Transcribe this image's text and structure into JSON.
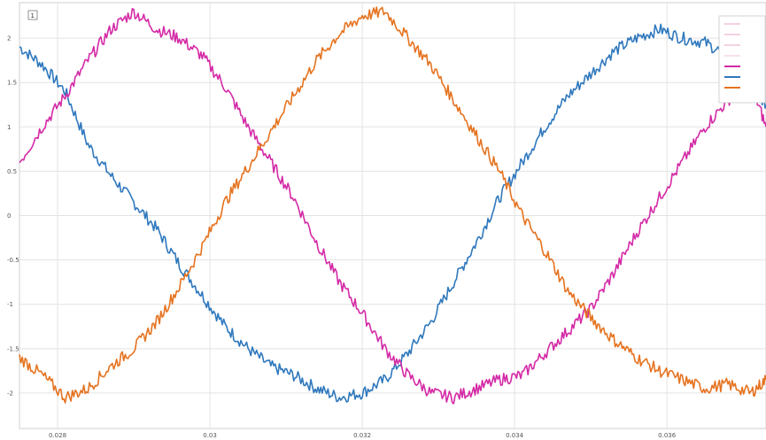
{
  "chart_data": {
    "type": "line",
    "title": "",
    "xlabel": "",
    "ylabel": "",
    "panel_badge": "1",
    "xlim": [
      0.0275,
      0.0373
    ],
    "ylim": [
      -2.4,
      2.4
    ],
    "grid": true,
    "legend_placement": "top-right",
    "x_ticks": [
      {
        "value": 0.028,
        "label": "0.028"
      },
      {
        "value": 0.03,
        "label": "0.03"
      },
      {
        "value": 0.032,
        "label": "0.032"
      },
      {
        "value": 0.034,
        "label": "0.034"
      },
      {
        "value": 0.036,
        "label": "0.036"
      }
    ],
    "y_ticks": [
      {
        "value": 2,
        "label": "2"
      },
      {
        "value": 1.5,
        "label": "1.5"
      },
      {
        "value": 1,
        "label": "1"
      },
      {
        "value": 0.5,
        "label": "0.5"
      },
      {
        "value": 0,
        "label": "0"
      },
      {
        "value": -0.5,
        "label": "-0.5"
      },
      {
        "value": -1,
        "label": "-1"
      },
      {
        "value": -1.5,
        "label": "-1.5"
      },
      {
        "value": -2,
        "label": "-2"
      }
    ],
    "series": [
      {
        "name": "",
        "color": "#2f78bd",
        "x": [
          0.0275,
          0.0278,
          0.0281,
          0.0284,
          0.0287,
          0.029,
          0.0293,
          0.0296,
          0.0299,
          0.0302,
          0.0305,
          0.0308,
          0.0311,
          0.0314,
          0.0317,
          0.032,
          0.0323,
          0.0326,
          0.0329,
          0.0332,
          0.0335,
          0.0338,
          0.0341,
          0.0344,
          0.0347,
          0.035,
          0.0353,
          0.0356,
          0.0359,
          0.0362,
          0.0365,
          0.0368,
          0.0371,
          0.0373
        ],
        "y": [
          1.9,
          1.7,
          1.4,
          0.8,
          0.45,
          0.15,
          -0.15,
          -0.55,
          -0.9,
          -1.25,
          -1.5,
          -1.7,
          -1.8,
          -1.95,
          -2.05,
          -2.0,
          -1.85,
          -1.55,
          -1.2,
          -0.75,
          -0.3,
          0.2,
          0.6,
          1.0,
          1.35,
          1.6,
          1.85,
          2.0,
          2.1,
          2.0,
          1.95,
          1.8,
          1.5,
          1.25
        ]
      },
      {
        "name": "",
        "color": "#d42aa6",
        "x": [
          0.0275,
          0.0278,
          0.0281,
          0.0284,
          0.0287,
          0.029,
          0.0293,
          0.0296,
          0.0299,
          0.0302,
          0.0305,
          0.0308,
          0.0311,
          0.0314,
          0.0317,
          0.032,
          0.0323,
          0.0326,
          0.0329,
          0.0332,
          0.0335,
          0.0338,
          0.0341,
          0.0344,
          0.0347,
          0.035,
          0.0353,
          0.0356,
          0.0359,
          0.0362,
          0.0365,
          0.0368,
          0.0371,
          0.0373
        ],
        "y": [
          0.6,
          1.0,
          1.35,
          1.75,
          2.1,
          2.3,
          2.1,
          2.0,
          1.8,
          1.45,
          1.0,
          0.6,
          0.2,
          -0.3,
          -0.75,
          -1.1,
          -1.5,
          -1.8,
          -2.0,
          -2.05,
          -1.95,
          -1.85,
          -1.8,
          -1.55,
          -1.3,
          -1.05,
          -0.65,
          -0.2,
          0.2,
          0.6,
          1.0,
          1.3,
          1.5,
          1.0
        ]
      },
      {
        "name": "",
        "color": "#e57320",
        "x": [
          0.0275,
          0.0278,
          0.0281,
          0.0284,
          0.0287,
          0.029,
          0.0293,
          0.0296,
          0.0299,
          0.0302,
          0.0305,
          0.0308,
          0.0311,
          0.0314,
          0.0317,
          0.032,
          0.0323,
          0.0326,
          0.0329,
          0.0332,
          0.0335,
          0.0338,
          0.0341,
          0.0344,
          0.0347,
          0.035,
          0.0353,
          0.0356,
          0.0359,
          0.0362,
          0.0365,
          0.0368,
          0.0371,
          0.0373
        ],
        "y": [
          -1.6,
          -1.8,
          -2.05,
          -1.95,
          -1.7,
          -1.5,
          -1.2,
          -0.8,
          -0.35,
          0.15,
          0.55,
          0.95,
          1.35,
          1.75,
          2.05,
          2.25,
          2.3,
          2.0,
          1.7,
          1.3,
          0.9,
          0.5,
          0.0,
          -0.4,
          -0.85,
          -1.15,
          -1.4,
          -1.6,
          -1.75,
          -1.85,
          -1.95,
          -1.9,
          -2.0,
          -1.85
        ]
      }
    ],
    "legend": [
      {
        "label": "",
        "color": "#e8a3c9"
      },
      {
        "label": "",
        "color": "#e8a3c9"
      },
      {
        "label": "",
        "color": "#e8a3c9"
      },
      {
        "label": "",
        "color": "#f2c2dd"
      },
      {
        "label": "",
        "color": "#d42aa6"
      },
      {
        "label": "",
        "color": "#2f78bd"
      },
      {
        "label": "",
        "color": "#e57320"
      }
    ]
  }
}
